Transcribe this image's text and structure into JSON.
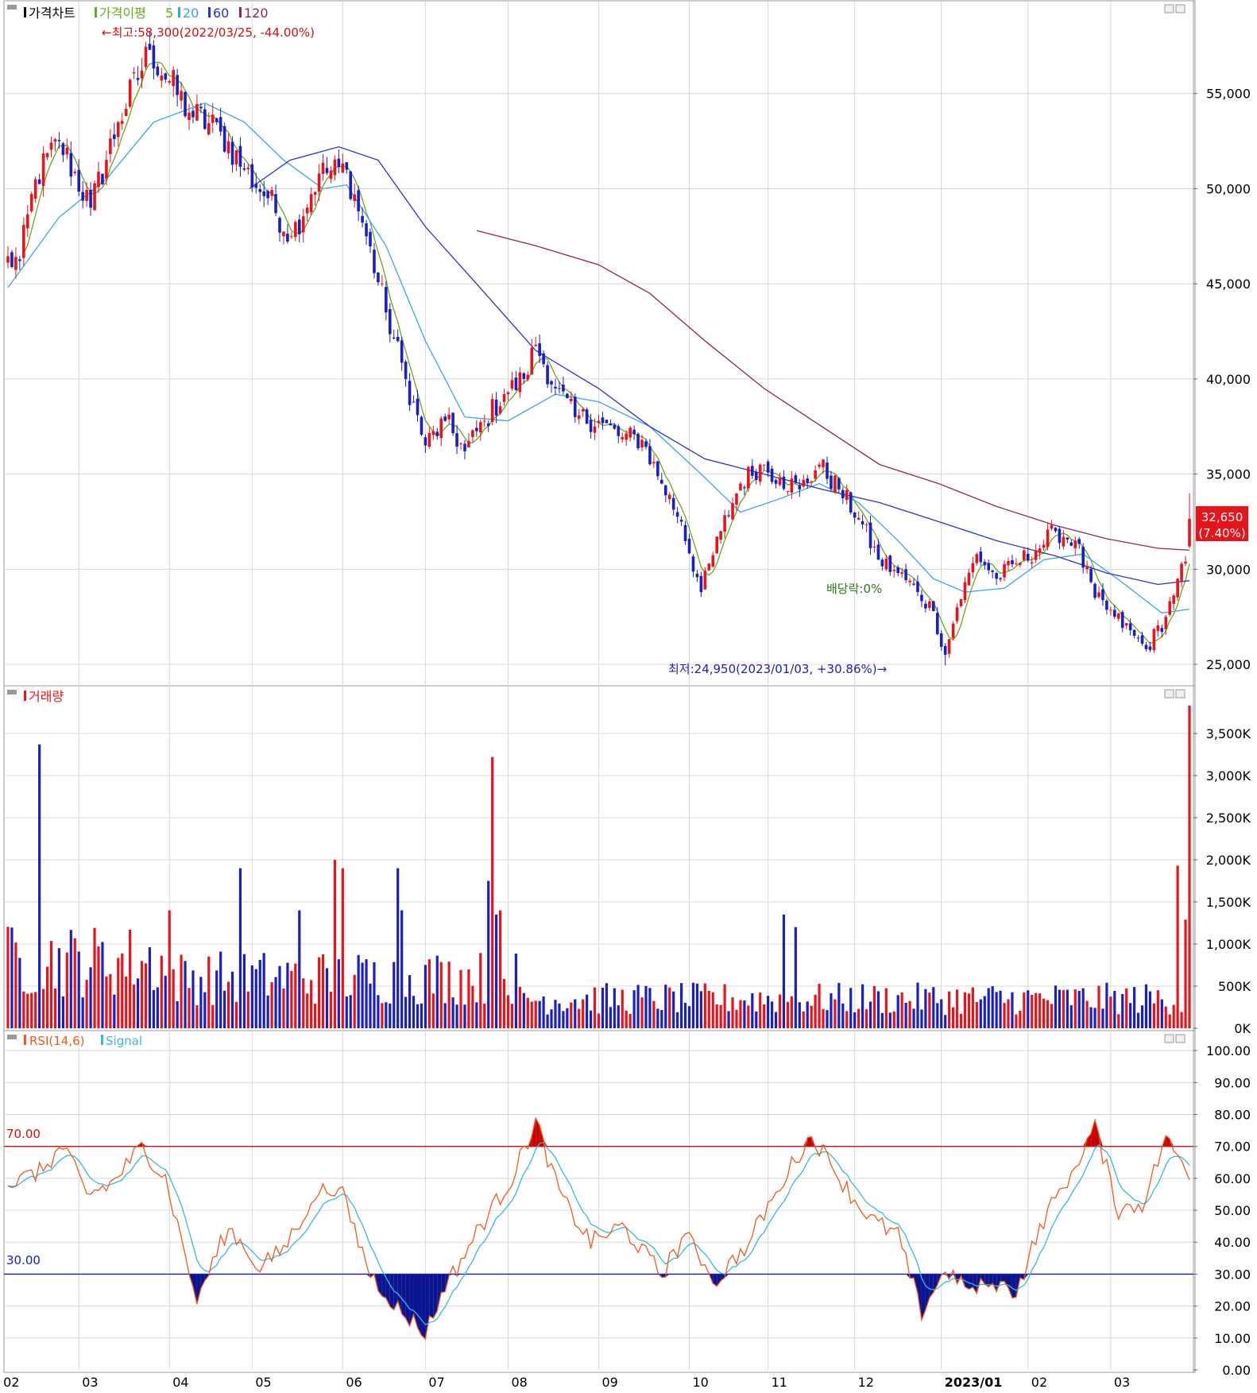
{
  "panels": {
    "price": {
      "title": "가격차트",
      "ma_label": "가격이평",
      "ma_periods": [
        "5",
        "20",
        "60",
        "120"
      ],
      "high_note": "←최고:58,300(2022/03/25, -44.00%)",
      "low_note": "최저:24,950(2023/01/03, +30.86%)→",
      "dividend_note": "배당락:0%",
      "last_price": "32,650",
      "last_change": "(7.40%)"
    },
    "volume": {
      "title": "거래량"
    },
    "rsi": {
      "title": "RSI(14,6)",
      "signal_label": "Signal",
      "upper_line": "70.00",
      "lower_line": "30.00"
    }
  },
  "colors": {
    "up": "#e8141c",
    "down": "#1a1fc0",
    "ma5": "#6aa81e",
    "ma20": "#3aa6e0",
    "ma60": "#2a32d0",
    "ma120": "#8a2a52",
    "rsi": "#f05a1a",
    "signal": "#3ab8d8",
    "upper_line": "#d01010",
    "lower_line": "#1a1fb0",
    "overbought_fill": "#c80000",
    "oversold_fill": "#0a1490",
    "grid": "#d8d8d8",
    "panel_border": "#9a9a9a"
  },
  "x_axis": {
    "labels": [
      "02",
      "03",
      "04",
      "05",
      "06",
      "07",
      "08",
      "09",
      "10",
      "11",
      "12",
      "2023/01",
      "02",
      "03"
    ]
  },
  "chart_data": [
    {
      "type": "candlestick",
      "title": "가격차트",
      "ylim": [
        24000,
        59500
      ],
      "y_ticks": [
        "25,000",
        "30,000",
        "35,000",
        "40,000",
        "45,000",
        "50,000",
        "55,000"
      ],
      "anchors": [
        {
          "date": "2022-02-08",
          "close": 46200
        },
        {
          "date": "2022-02-14",
          "close": 50500
        },
        {
          "date": "2022-02-22",
          "close": 52500
        },
        {
          "date": "2022-03-04",
          "close": 49000
        },
        {
          "date": "2022-03-15",
          "close": 53500
        },
        {
          "date": "2022-03-25",
          "close": 57300
        },
        {
          "date": "2022-04-08",
          "close": 54000
        },
        {
          "date": "2022-04-20",
          "close": 53000
        },
        {
          "date": "2022-04-28",
          "close": 51000
        },
        {
          "date": "2022-05-06",
          "close": 49500
        },
        {
          "date": "2022-05-16",
          "close": 47500
        },
        {
          "date": "2022-05-25",
          "close": 50800
        },
        {
          "date": "2022-06-03",
          "close": 51000
        },
        {
          "date": "2022-06-10",
          "close": 47500
        },
        {
          "date": "2022-06-17",
          "close": 43500
        },
        {
          "date": "2022-06-24",
          "close": 40000
        },
        {
          "date": "2022-07-01",
          "close": 36500
        },
        {
          "date": "2022-07-08",
          "close": 37800
        },
        {
          "date": "2022-07-15",
          "close": 36200
        },
        {
          "date": "2022-07-22",
          "close": 37800
        },
        {
          "date": "2022-07-29",
          "close": 39200
        },
        {
          "date": "2022-08-05",
          "close": 40000
        },
        {
          "date": "2022-08-10",
          "close": 41800
        },
        {
          "date": "2022-08-17",
          "close": 39500
        },
        {
          "date": "2022-08-24",
          "close": 38000
        },
        {
          "date": "2022-09-01",
          "close": 37800
        },
        {
          "date": "2022-09-08",
          "close": 37000
        },
        {
          "date": "2022-09-16",
          "close": 36800
        },
        {
          "date": "2022-09-23",
          "close": 34500
        },
        {
          "date": "2022-09-30",
          "close": 32500
        },
        {
          "date": "2022-10-07",
          "close": 28800
        },
        {
          "date": "2022-10-14",
          "close": 32000
        },
        {
          "date": "2022-10-21",
          "close": 34500
        },
        {
          "date": "2022-10-28",
          "close": 35500
        },
        {
          "date": "2022-11-04",
          "close": 34800
        },
        {
          "date": "2022-11-11",
          "close": 34200
        },
        {
          "date": "2022-11-18",
          "close": 35500
        },
        {
          "date": "2022-11-25",
          "close": 34200
        },
        {
          "date": "2022-12-02",
          "close": 32700
        },
        {
          "date": "2022-12-09",
          "close": 30500
        },
        {
          "date": "2022-12-16",
          "close": 29800
        },
        {
          "date": "2022-12-23",
          "close": 28800
        },
        {
          "date": "2022-12-29",
          "close": 27800
        },
        {
          "date": "2023-01-03",
          "close": 25500
        },
        {
          "date": "2023-01-06",
          "close": 28000
        },
        {
          "date": "2023-01-13",
          "close": 30800
        },
        {
          "date": "2023-01-20",
          "close": 29500
        },
        {
          "date": "2023-01-27",
          "close": 30300
        },
        {
          "date": "2023-02-03",
          "close": 31000
        },
        {
          "date": "2023-02-10",
          "close": 32000
        },
        {
          "date": "2023-02-17",
          "close": 31500
        },
        {
          "date": "2023-02-24",
          "close": 28500
        },
        {
          "date": "2023-03-03",
          "close": 27500
        },
        {
          "date": "2023-03-10",
          "close": 26500
        },
        {
          "date": "2023-03-15",
          "close": 25800
        },
        {
          "date": "2023-03-22",
          "close": 27500
        },
        {
          "date": "2023-03-27",
          "close": 29500
        },
        {
          "date": "2023-03-29",
          "close": 30400
        },
        {
          "date": "2023-03-30",
          "close": 32650
        }
      ],
      "ma": {
        "ma20": [
          {
            "date": "2022-02-03",
            "value": 44800
          },
          {
            "date": "2022-02-22",
            "value": 48500
          },
          {
            "date": "2022-03-10",
            "value": 50500
          },
          {
            "date": "2022-03-28",
            "value": 53500
          },
          {
            "date": "2022-04-14",
            "value": 54500
          },
          {
            "date": "2022-04-28",
            "value": 53500
          },
          {
            "date": "2022-05-12",
            "value": 51500
          },
          {
            "date": "2022-05-26",
            "value": 50000
          },
          {
            "date": "2022-06-03",
            "value": 50200
          },
          {
            "date": "2022-06-17",
            "value": 47000
          },
          {
            "date": "2022-07-01",
            "value": 42000
          },
          {
            "date": "2022-07-15",
            "value": 38000
          },
          {
            "date": "2022-08-01",
            "value": 37800
          },
          {
            "date": "2022-08-17",
            "value": 39200
          },
          {
            "date": "2022-09-01",
            "value": 38800
          },
          {
            "date": "2022-09-20",
            "value": 37500
          },
          {
            "date": "2022-10-07",
            "value": 35000
          },
          {
            "date": "2022-10-21",
            "value": 33000
          },
          {
            "date": "2022-11-04",
            "value": 33700
          },
          {
            "date": "2022-11-18",
            "value": 34500
          },
          {
            "date": "2022-12-02",
            "value": 33500
          },
          {
            "date": "2022-12-16",
            "value": 31500
          },
          {
            "date": "2022-12-29",
            "value": 29500
          },
          {
            "date": "2023-01-10",
            "value": 28800
          },
          {
            "date": "2023-01-24",
            "value": 29000
          },
          {
            "date": "2023-02-07",
            "value": 30500
          },
          {
            "date": "2023-02-21",
            "value": 30800
          },
          {
            "date": "2023-03-07",
            "value": 29300
          },
          {
            "date": "2023-03-21",
            "value": 27700
          },
          {
            "date": "2023-03-30",
            "value": 27900
          }
        ],
        "ma60": [
          {
            "date": "2022-04-30",
            "value": 50000
          },
          {
            "date": "2022-05-15",
            "value": 51500
          },
          {
            "date": "2022-06-01",
            "value": 52200
          },
          {
            "date": "2022-06-15",
            "value": 51500
          },
          {
            "date": "2022-07-01",
            "value": 48000
          },
          {
            "date": "2022-07-20",
            "value": 45000
          },
          {
            "date": "2022-08-10",
            "value": 41500
          },
          {
            "date": "2022-09-01",
            "value": 39500
          },
          {
            "date": "2022-09-20",
            "value": 37500
          },
          {
            "date": "2022-10-10",
            "value": 35800
          },
          {
            "date": "2022-10-31",
            "value": 35000
          },
          {
            "date": "2022-11-20",
            "value": 34200
          },
          {
            "date": "2022-12-10",
            "value": 33500
          },
          {
            "date": "2022-12-31",
            "value": 32500
          },
          {
            "date": "2023-01-20",
            "value": 31500
          },
          {
            "date": "2023-02-10",
            "value": 30700
          },
          {
            "date": "2023-03-01",
            "value": 29800
          },
          {
            "date": "2023-03-20",
            "value": 29200
          },
          {
            "date": "2023-03-30",
            "value": 29400
          }
        ],
        "ma120": [
          {
            "date": "2022-07-20",
            "value": 47800
          },
          {
            "date": "2022-08-10",
            "value": 47000
          },
          {
            "date": "2022-09-01",
            "value": 46000
          },
          {
            "date": "2022-09-20",
            "value": 44500
          },
          {
            "date": "2022-10-10",
            "value": 42000
          },
          {
            "date": "2022-10-31",
            "value": 39500
          },
          {
            "date": "2022-11-20",
            "value": 37500
          },
          {
            "date": "2022-12-10",
            "value": 35500
          },
          {
            "date": "2022-12-31",
            "value": 34500
          },
          {
            "date": "2023-01-20",
            "value": 33300
          },
          {
            "date": "2023-02-10",
            "value": 32300
          },
          {
            "date": "2023-03-01",
            "value": 31600
          },
          {
            "date": "2023-03-20",
            "value": 31100
          },
          {
            "date": "2023-03-30",
            "value": 31000
          }
        ]
      }
    },
    {
      "type": "bar",
      "title": "거래량",
      "ylim": [
        0,
        4000000
      ],
      "y_ticks": [
        "0K",
        "500K",
        "1,000K",
        "1,500K",
        "2,000K",
        "2,500K",
        "3,000K",
        "3,500K"
      ],
      "spikes": [
        {
          "date": "2022-02-15",
          "value": 3370000
        },
        {
          "date": "2022-04-01",
          "value": 1400000
        },
        {
          "date": "2022-04-27",
          "value": 1900000
        },
        {
          "date": "2022-05-18",
          "value": 1400000
        },
        {
          "date": "2022-05-31",
          "value": 2000000
        },
        {
          "date": "2022-06-02",
          "value": 1900000
        },
        {
          "date": "2022-06-22",
          "value": 1900000
        },
        {
          "date": "2022-06-23",
          "value": 1400000
        },
        {
          "date": "2022-07-25",
          "value": 1750000
        },
        {
          "date": "2022-07-26",
          "value": 3220000
        },
        {
          "date": "2022-07-27",
          "value": 1350000
        },
        {
          "date": "2022-07-28",
          "value": 1400000
        },
        {
          "date": "2022-11-07",
          "value": 1350000
        },
        {
          "date": "2022-11-10",
          "value": 1200000
        },
        {
          "date": "2023-03-27",
          "value": 1930000
        },
        {
          "date": "2023-03-29",
          "value": 1290000
        },
        {
          "date": "2023-03-30",
          "value": 3830000
        }
      ]
    },
    {
      "type": "line",
      "title": "RSI(14,6)",
      "ylim": [
        0,
        105
      ],
      "y_ticks": [
        "0.00",
        "10.00",
        "20.00",
        "30.00",
        "40.00",
        "50.00",
        "60.00",
        "70.00",
        "80.00",
        "90.00",
        "100.00"
      ],
      "series": [
        {
          "name": "RSI(14,6)"
        },
        {
          "name": "Signal"
        }
      ]
    }
  ]
}
